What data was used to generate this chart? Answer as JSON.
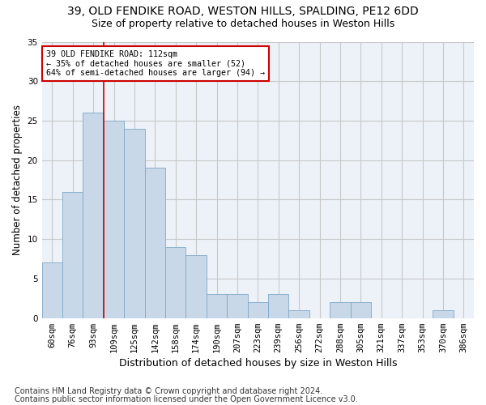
{
  "title1": "39, OLD FENDIKE ROAD, WESTON HILLS, SPALDING, PE12 6DD",
  "title2": "Size of property relative to detached houses in Weston Hills",
  "xlabel": "Distribution of detached houses by size in Weston Hills",
  "ylabel": "Number of detached properties",
  "footnote1": "Contains HM Land Registry data © Crown copyright and database right 2024.",
  "footnote2": "Contains public sector information licensed under the Open Government Licence v3.0.",
  "categories": [
    "60sqm",
    "76sqm",
    "93sqm",
    "109sqm",
    "125sqm",
    "142sqm",
    "158sqm",
    "174sqm",
    "190sqm",
    "207sqm",
    "223sqm",
    "239sqm",
    "256sqm",
    "272sqm",
    "288sqm",
    "305sqm",
    "321sqm",
    "337sqm",
    "353sqm",
    "370sqm",
    "386sqm"
  ],
  "values": [
    7,
    16,
    26,
    25,
    24,
    19,
    9,
    8,
    3,
    3,
    2,
    3,
    1,
    0,
    2,
    2,
    0,
    0,
    0,
    1,
    0
  ],
  "bar_color": "#c8d8e8",
  "bar_edge_color": "#7fa8c8",
  "background_color": "#edf2f9",
  "grid_color": "#c8c8c8",
  "annotation_box_text": "39 OLD FENDIKE ROAD: 112sqm\n← 35% of detached houses are smaller (52)\n64% of semi-detached houses are larger (94) →",
  "annotation_box_color": "#ffffff",
  "annotation_box_edge_color": "#cc0000",
  "vline_color": "#cc0000",
  "vline_position": 3.0,
  "ylim": [
    0,
    35
  ],
  "yticks": [
    0,
    5,
    10,
    15,
    20,
    25,
    30,
    35
  ],
  "title1_fontsize": 10,
  "title2_fontsize": 9,
  "xlabel_fontsize": 9,
  "ylabel_fontsize": 8.5,
  "tick_fontsize": 7.5,
  "footnote_fontsize": 7
}
